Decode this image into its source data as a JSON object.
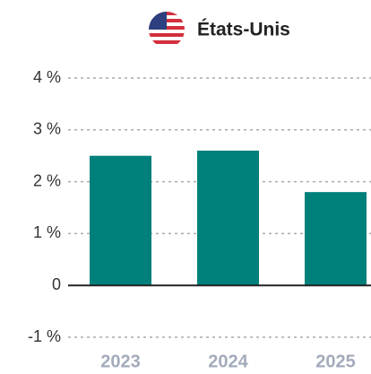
{
  "chart_data": {
    "type": "bar",
    "title": "États-Unis",
    "categories": [
      "2023",
      "2024",
      "2025"
    ],
    "values": [
      2.5,
      2.6,
      1.8
    ],
    "color": "#00807a",
    "ylim": [
      -1,
      4
    ],
    "yticks": [
      {
        "value": 4,
        "label": "4 %"
      },
      {
        "value": 3,
        "label": "3 %"
      },
      {
        "value": 2,
        "label": "2 %"
      },
      {
        "value": 1,
        "label": "1 %"
      },
      0,
      {
        "value": -1,
        "label": "-1 %"
      }
    ],
    "grid": true
  }
}
